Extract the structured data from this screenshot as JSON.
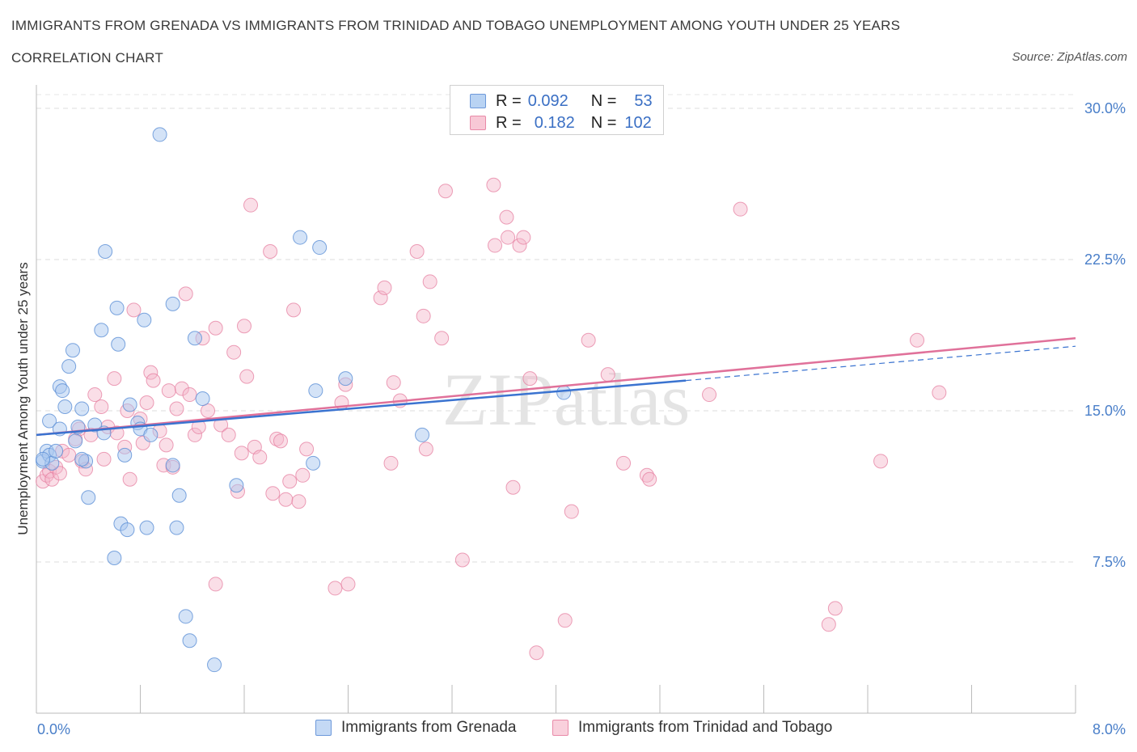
{
  "title": "IMMIGRANTS FROM GRENADA VS IMMIGRANTS FROM TRINIDAD AND TOBAGO UNEMPLOYMENT AMONG YOUTH UNDER 25 YEARS",
  "subtitle": "CORRELATION CHART",
  "source": "Source: ZipAtlas.com",
  "watermark": "ZIPatlas",
  "legend": {
    "series1": {
      "r_label": "R =",
      "r_value": "0.092",
      "n_label": "N =",
      "n_value": "53"
    },
    "series2": {
      "r_label": "R =",
      "r_value": "0.182",
      "n_label": "N =",
      "n_value": "102"
    }
  },
  "colors": {
    "blue_fill": "#a9c8ef",
    "blue_stroke": "#5b8fd6",
    "blue_line": "#3a73d0",
    "pink_fill": "#f4b6c9",
    "pink_stroke": "#e57fa0",
    "pink_line": "#e0719a"
  },
  "chart_data": {
    "type": "scatter",
    "title": "IMMIGRANTS FROM GRENADA VS IMMIGRANTS FROM TRINIDAD AND TOBAGO UNEMPLOYMENT AMONG YOUTH UNDER 25 YEARS",
    "xlabel": "",
    "ylabel": "Unemployment Among Youth under 25 years",
    "xlim": [
      0,
      8
    ],
    "ylim": [
      0,
      30
    ],
    "x_tick_labels": [
      "0.0%",
      "8.0%"
    ],
    "y_ticks": [
      7.5,
      15,
      22.5,
      30
    ],
    "y_tick_labels": [
      "7.5%",
      "15.0%",
      "22.5%",
      "30.0%"
    ],
    "grid": true,
    "legend_position": "bottom",
    "series": [
      {
        "name": "Immigrants from Grenada",
        "trend": {
          "x": [
            0,
            5.0
          ],
          "y": [
            13.8,
            16.5
          ],
          "dashed_extension": {
            "x": [
              5.0,
              8.0
            ],
            "y": [
              16.5,
              18.2
            ]
          }
        },
        "points": [
          [
            0.05,
            12.5
          ],
          [
            0.08,
            13.0
          ],
          [
            0.1,
            12.8
          ],
          [
            0.12,
            12.4
          ],
          [
            0.1,
            14.5
          ],
          [
            0.15,
            13.0
          ],
          [
            0.18,
            16.2
          ],
          [
            0.2,
            16.0
          ],
          [
            0.22,
            15.2
          ],
          [
            0.25,
            17.2
          ],
          [
            0.28,
            18.0
          ],
          [
            0.3,
            13.5
          ],
          [
            0.32,
            14.2
          ],
          [
            0.35,
            15.1
          ],
          [
            0.38,
            12.5
          ],
          [
            0.4,
            10.7
          ],
          [
            0.45,
            14.3
          ],
          [
            0.5,
            19.0
          ],
          [
            0.52,
            13.9
          ],
          [
            0.53,
            22.9
          ],
          [
            0.62,
            20.1
          ],
          [
            0.63,
            18.3
          ],
          [
            0.65,
            9.4
          ],
          [
            0.68,
            12.8
          ],
          [
            0.7,
            9.1
          ],
          [
            0.72,
            15.3
          ],
          [
            0.78,
            14.4
          ],
          [
            0.8,
            14.1
          ],
          [
            0.83,
            19.5
          ],
          [
            0.85,
            9.2
          ],
          [
            0.88,
            13.8
          ],
          [
            0.6,
            7.7
          ],
          [
            0.95,
            28.7
          ],
          [
            1.05,
            20.3
          ],
          [
            1.05,
            12.3
          ],
          [
            1.08,
            9.2
          ],
          [
            1.1,
            10.8
          ],
          [
            1.15,
            4.8
          ],
          [
            1.18,
            3.6
          ],
          [
            1.22,
            18.6
          ],
          [
            1.28,
            15.6
          ],
          [
            1.37,
            2.4
          ],
          [
            1.54,
            11.3
          ],
          [
            2.03,
            23.6
          ],
          [
            2.13,
            12.4
          ],
          [
            2.15,
            16.0
          ],
          [
            2.18,
            23.1
          ],
          [
            2.38,
            16.6
          ],
          [
            2.97,
            13.8
          ],
          [
            4.06,
            15.9
          ],
          [
            0.05,
            12.6
          ],
          [
            0.35,
            12.6
          ],
          [
            0.18,
            14.1
          ]
        ]
      },
      {
        "name": "Immigrants from Trinidad and Tobago",
        "trend": {
          "x": [
            0,
            8.0
          ],
          "y": [
            13.8,
            18.6
          ]
        },
        "points": [
          [
            0.05,
            11.5
          ],
          [
            0.08,
            11.8
          ],
          [
            0.1,
            12.0
          ],
          [
            0.12,
            11.6
          ],
          [
            0.15,
            12.2
          ],
          [
            0.18,
            11.9
          ],
          [
            0.2,
            13.0
          ],
          [
            0.25,
            12.8
          ],
          [
            0.3,
            13.6
          ],
          [
            0.33,
            14.1
          ],
          [
            0.35,
            12.5
          ],
          [
            0.38,
            12.1
          ],
          [
            0.42,
            13.8
          ],
          [
            0.45,
            15.8
          ],
          [
            0.5,
            15.2
          ],
          [
            0.52,
            12.6
          ],
          [
            0.55,
            14.2
          ],
          [
            0.6,
            16.6
          ],
          [
            0.62,
            13.9
          ],
          [
            0.68,
            13.2
          ],
          [
            0.7,
            15.0
          ],
          [
            0.72,
            11.6
          ],
          [
            0.75,
            20.0
          ],
          [
            0.8,
            14.6
          ],
          [
            0.82,
            13.4
          ],
          [
            0.85,
            15.4
          ],
          [
            0.88,
            16.9
          ],
          [
            0.9,
            16.5
          ],
          [
            0.95,
            14.0
          ],
          [
            0.98,
            12.3
          ],
          [
            1.0,
            13.3
          ],
          [
            1.02,
            16.0
          ],
          [
            1.05,
            12.2
          ],
          [
            1.08,
            15.1
          ],
          [
            1.12,
            16.1
          ],
          [
            1.15,
            20.8
          ],
          [
            1.18,
            15.8
          ],
          [
            1.22,
            13.8
          ],
          [
            1.25,
            14.2
          ],
          [
            1.28,
            18.6
          ],
          [
            1.32,
            15.0
          ],
          [
            1.38,
            19.1
          ],
          [
            1.42,
            14.3
          ],
          [
            1.48,
            13.8
          ],
          [
            1.52,
            17.9
          ],
          [
            1.55,
            11.0
          ],
          [
            1.58,
            12.9
          ],
          [
            1.62,
            16.7
          ],
          [
            1.68,
            13.2
          ],
          [
            1.72,
            12.7
          ],
          [
            1.8,
            22.9
          ],
          [
            1.82,
            10.9
          ],
          [
            1.85,
            13.6
          ],
          [
            1.88,
            13.5
          ],
          [
            1.92,
            10.6
          ],
          [
            1.95,
            11.5
          ],
          [
            1.98,
            20.0
          ],
          [
            2.02,
            10.5
          ],
          [
            2.05,
            11.8
          ],
          [
            2.08,
            13.1
          ],
          [
            2.35,
            15.4
          ],
          [
            2.38,
            16.3
          ],
          [
            2.65,
            20.6
          ],
          [
            2.68,
            21.1
          ],
          [
            2.73,
            12.4
          ],
          [
            2.75,
            16.4
          ],
          [
            2.8,
            15.5
          ],
          [
            2.93,
            22.9
          ],
          [
            2.98,
            19.7
          ],
          [
            3.03,
            21.4
          ],
          [
            3.12,
            18.6
          ],
          [
            3.15,
            25.9
          ],
          [
            3.0,
            13.1
          ],
          [
            3.28,
            7.6
          ],
          [
            3.52,
            26.2
          ],
          [
            3.53,
            23.2
          ],
          [
            3.62,
            24.6
          ],
          [
            3.63,
            23.6
          ],
          [
            3.72,
            23.2
          ],
          [
            3.75,
            23.6
          ],
          [
            3.67,
            11.2
          ],
          [
            3.8,
            16.6
          ],
          [
            3.85,
            3.0
          ],
          [
            4.07,
            4.6
          ],
          [
            4.12,
            10.0
          ],
          [
            4.25,
            18.5
          ],
          [
            4.4,
            16.8
          ],
          [
            4.52,
            12.4
          ],
          [
            5.18,
            15.8
          ],
          [
            5.42,
            25.0
          ],
          [
            6.1,
            4.4
          ],
          [
            6.15,
            5.2
          ],
          [
            6.5,
            12.5
          ],
          [
            6.78,
            18.5
          ],
          [
            6.95,
            15.9
          ],
          [
            4.7,
            11.8
          ],
          [
            4.72,
            11.6
          ],
          [
            2.3,
            6.2
          ],
          [
            2.4,
            6.4
          ],
          [
            1.6,
            19.2
          ],
          [
            1.38,
            6.4
          ],
          [
            1.65,
            25.2
          ]
        ]
      }
    ]
  },
  "bottom_legend": {
    "series1": "Immigrants from Grenada",
    "series2": "Immigrants from Trinidad and Tobago"
  }
}
